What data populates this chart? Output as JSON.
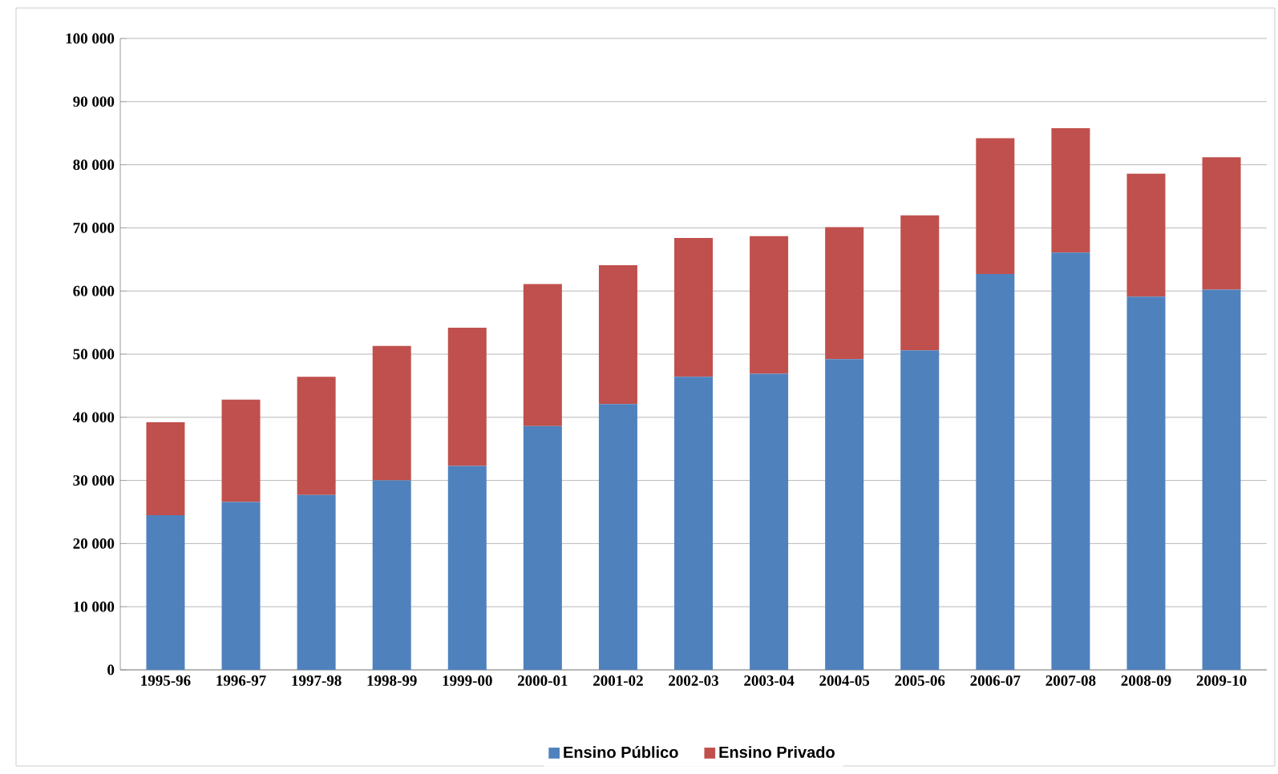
{
  "chart_data": {
    "type": "bar",
    "stacked": true,
    "categories": [
      "1995-96",
      "1996-97",
      "1997-98",
      "1998-99",
      "1999-00",
      "2000-01",
      "2001-02",
      "2002-03",
      "2003-04",
      "2004-05",
      "2005-06",
      "2006-07",
      "2007-08",
      "2008-09",
      "2009-10"
    ],
    "series": [
      {
        "name": "Ensino Público",
        "color": "#4f81bd",
        "values": [
          24500,
          26600,
          27700,
          30000,
          32300,
          38600,
          42100,
          46400,
          46900,
          49200,
          50600,
          62700,
          66100,
          59100,
          60200
        ]
      },
      {
        "name": "Ensino Privado",
        "color": "#c0504d",
        "values": [
          14700,
          16200,
          18700,
          21300,
          21900,
          22500,
          22000,
          22000,
          21800,
          20900,
          21400,
          21500,
          19700,
          19500,
          21000
        ]
      }
    ],
    "ylim": [
      0,
      100000
    ],
    "yticks": [
      0,
      {
        "value": 10000,
        "label": "10 000"
      },
      {
        "value": 20000,
        "label": "20 000"
      },
      {
        "value": 30000,
        "label": "30 000"
      },
      {
        "value": 40000,
        "label": "40 000"
      },
      {
        "value": 50000,
        "label": "50 000"
      },
      {
        "value": 60000,
        "label": "60 000"
      },
      {
        "value": 70000,
        "label": "70 000"
      },
      {
        "value": 80000,
        "label": "80 000"
      },
      {
        "value": 90000,
        "label": "90 000"
      },
      {
        "value": 100000,
        "label": "100 000"
      }
    ],
    "grid": "y",
    "legend": "bottom"
  }
}
